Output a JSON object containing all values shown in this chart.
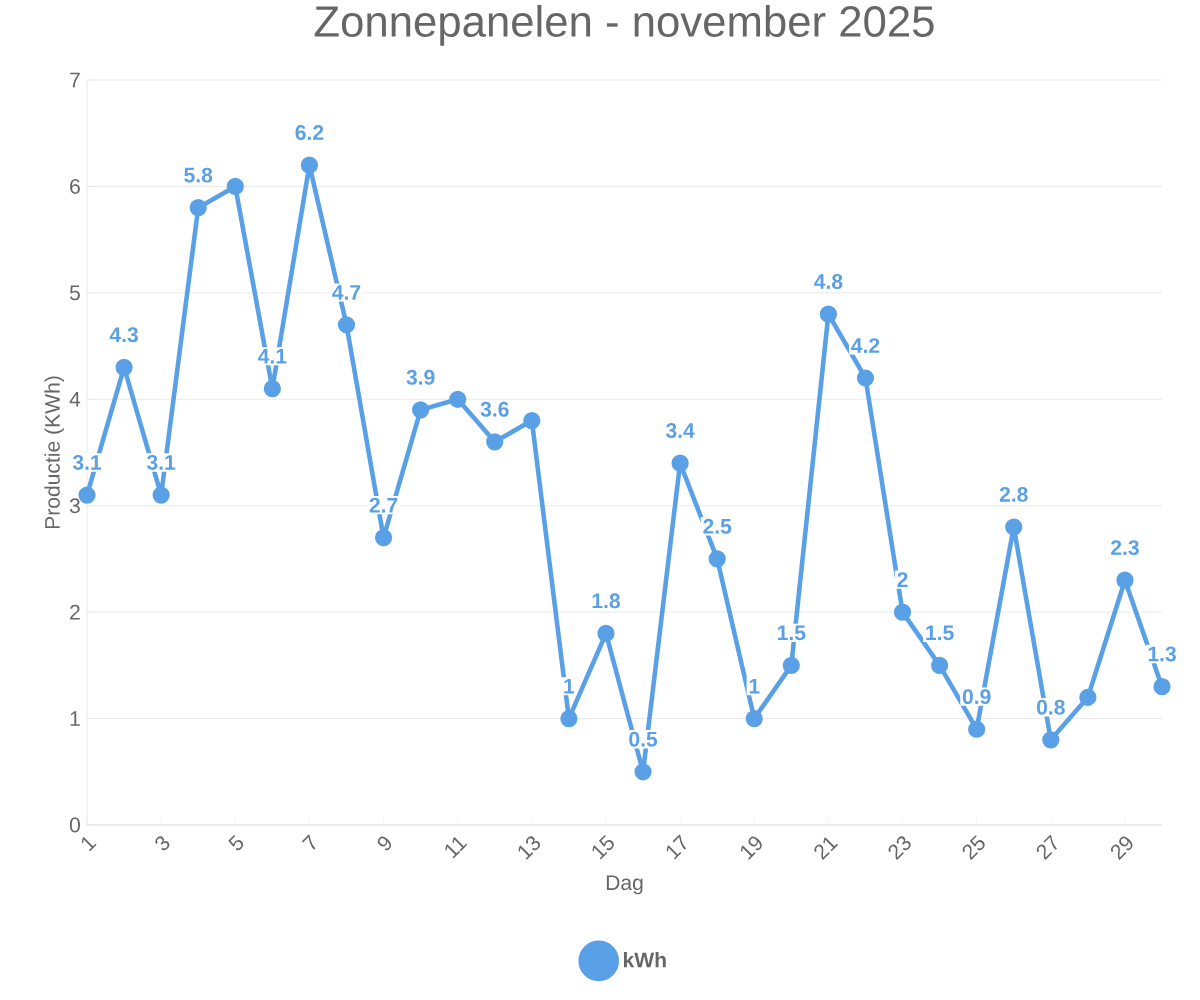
{
  "chart_data": {
    "type": "line",
    "title": "Zonnepanelen - november 2025",
    "xlabel": "Dag",
    "ylabel": "Productie (KWh)",
    "x": [
      1,
      2,
      3,
      4,
      5,
      6,
      7,
      8,
      9,
      10,
      11,
      12,
      13,
      14,
      15,
      16,
      17,
      18,
      19,
      20,
      21,
      22,
      23,
      24,
      25,
      26,
      27,
      28,
      29,
      30
    ],
    "series": [
      {
        "name": "kWh",
        "color": "#5aa0e6",
        "values": [
          3.1,
          4.3,
          3.1,
          5.8,
          6.0,
          4.1,
          6.2,
          4.7,
          2.7,
          3.9,
          4.0,
          3.6,
          3.8,
          1,
          1.8,
          0.5,
          3.4,
          2.5,
          1,
          1.5,
          4.8,
          4.2,
          2,
          1.5,
          0.9,
          2.8,
          0.8,
          1.2,
          2.3,
          1.3
        ],
        "value_labels": [
          "3.1",
          "4.3",
          "3.1",
          "5.8",
          null,
          "4.1",
          "6.2",
          "4.7",
          "2.7",
          "3.9",
          null,
          "3.6",
          null,
          "1",
          "1.8",
          "0.5",
          "3.4",
          "2.5",
          "1",
          "1.5",
          "4.8",
          "4.2",
          "2",
          "1.5",
          "0.9",
          "2.8",
          "0.8",
          null,
          "2.3",
          "1.3"
        ]
      }
    ],
    "xlim": [
      1,
      30
    ],
    "xticks": [
      1,
      3,
      5,
      7,
      9,
      11,
      13,
      15,
      17,
      19,
      21,
      23,
      25,
      27,
      29
    ],
    "ylim": [
      0,
      7
    ],
    "yticks": [
      0,
      1,
      2,
      3,
      4,
      5,
      6,
      7
    ],
    "grid": "y",
    "legend": "bottom",
    "marker": "circle",
    "line_style": "solid"
  }
}
